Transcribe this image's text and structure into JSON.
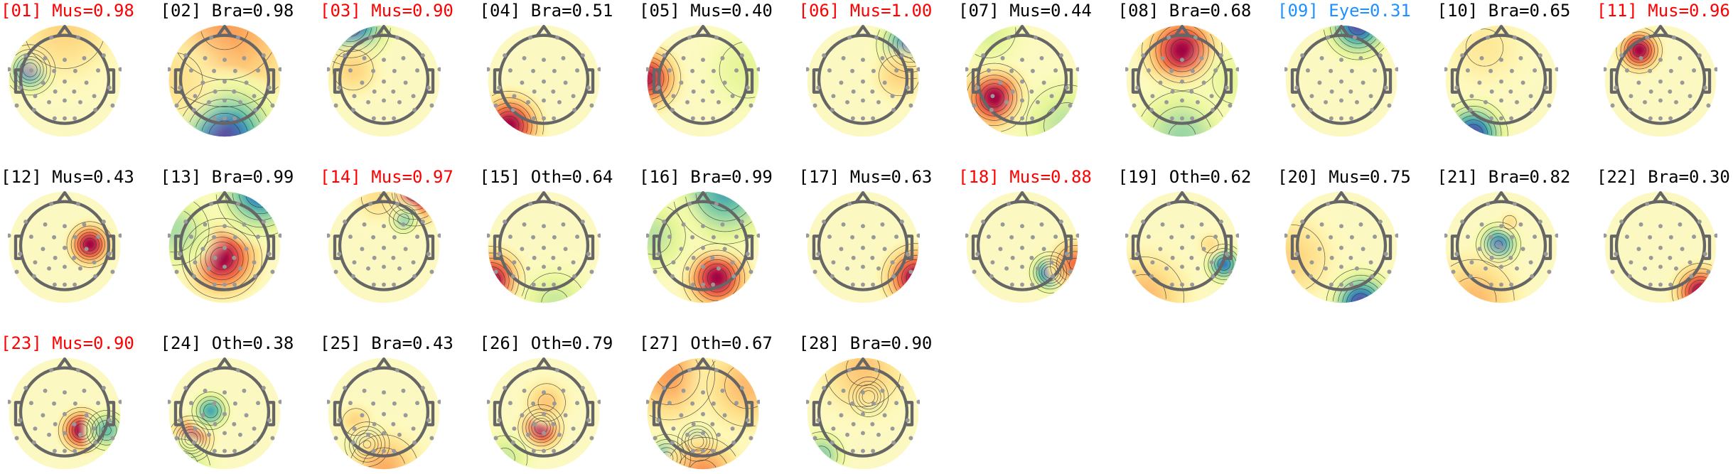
{
  "chart_data": {
    "type": "heatmap",
    "description_kind": "scalp topographic maps of independent components",
    "colormap": "Spectral_r",
    "value_range": [
      -1,
      1
    ],
    "colors": {
      "flag_red": "#ff0000",
      "flag_blue": "#1e90ff",
      "normal": "#000000",
      "head_outline": "#666666",
      "electrode": "#999999"
    },
    "panels": [
      {
        "title": "[01] Mus=0.98",
        "color": "#ff0000",
        "sources": [
          {
            "x": -0.62,
            "y": 0.2,
            "v": -1,
            "s": 0.22
          },
          {
            "x": 0,
            "y": 0.95,
            "v": 0.25,
            "s": 0.6
          }
        ]
      },
      {
        "title": "[02] Bra=0.98",
        "color": "#000000",
        "sources": [
          {
            "x": 0,
            "y": 1.0,
            "v": 0.45,
            "s": 0.9
          },
          {
            "x": 0,
            "y": -1.0,
            "v": -1,
            "s": 0.5
          },
          {
            "x": -0.9,
            "y": 0,
            "v": 0.2,
            "s": 0.5
          }
        ]
      },
      {
        "title": "[03] Mus=0.90",
        "color": "#ff0000",
        "sources": [
          {
            "x": -0.6,
            "y": 1.0,
            "v": -1,
            "s": 0.35
          },
          {
            "x": -0.55,
            "y": 0.2,
            "v": 0.25,
            "s": 0.3
          }
        ]
      },
      {
        "title": "[04] Bra=0.51",
        "color": "#000000",
        "sources": [
          {
            "x": -0.62,
            "y": -0.8,
            "v": 1,
            "s": 0.3
          }
        ]
      },
      {
        "title": "[05] Mus=0.40",
        "color": "#000000",
        "sources": [
          {
            "x": -1.0,
            "y": 0.05,
            "v": 0.9,
            "s": 0.3
          },
          {
            "x": 0.8,
            "y": 0.2,
            "v": -0.2,
            "s": 0.5
          }
        ]
      },
      {
        "title": "[06] Mus=1.00",
        "color": "#ff0000",
        "sources": [
          {
            "x": 0.85,
            "y": 0.65,
            "v": -0.95,
            "s": 0.3
          },
          {
            "x": 0.65,
            "y": 0.1,
            "v": 0.25,
            "s": 0.3
          }
        ]
      },
      {
        "title": "[07] Mus=0.44",
        "color": "#000000",
        "sources": [
          {
            "x": -0.5,
            "y": -0.3,
            "v": 1,
            "s": 0.3
          },
          {
            "x": 0.8,
            "y": -0.8,
            "v": -0.35,
            "s": 0.5
          },
          {
            "x": -0.6,
            "y": 0.9,
            "v": -0.25,
            "s": 0.4
          }
        ]
      },
      {
        "title": "[08] Bra=0.68",
        "color": "#000000",
        "sources": [
          {
            "x": 0,
            "y": 0.55,
            "v": 1,
            "s": 0.35
          },
          {
            "x": 0,
            "y": -1.0,
            "v": -0.45,
            "s": 0.5
          },
          {
            "x": 0.95,
            "y": 0,
            "v": -0.2,
            "s": 0.4
          }
        ]
      },
      {
        "title": "[09] Eye=0.31",
        "color": "#1e90ff",
        "sources": [
          {
            "x": 0.3,
            "y": 1.0,
            "v": -1,
            "s": 0.3
          }
        ]
      },
      {
        "title": "[10] Bra=0.65",
        "color": "#000000",
        "sources": [
          {
            "x": -0.5,
            "y": -0.95,
            "v": -1,
            "s": 0.3
          },
          {
            "x": -0.3,
            "y": 0.6,
            "v": 0.15,
            "s": 0.5
          }
        ]
      },
      {
        "title": "[11] Mus=0.96",
        "color": "#ff0000",
        "sources": [
          {
            "x": -0.38,
            "y": 0.55,
            "v": 1,
            "s": 0.2
          }
        ]
      },
      {
        "title": "[12] Mus=0.43",
        "color": "#000000",
        "sources": [
          {
            "x": 0.45,
            "y": 0.05,
            "v": 1,
            "s": 0.2
          }
        ]
      },
      {
        "title": "[13] Bra=0.99",
        "color": "#000000",
        "sources": [
          {
            "x": -0.05,
            "y": -0.2,
            "v": 1,
            "s": 0.35
          },
          {
            "x": 0.65,
            "y": 1.0,
            "v": -0.9,
            "s": 0.4
          },
          {
            "x": -0.9,
            "y": 0.3,
            "v": -0.4,
            "s": 0.4
          }
        ]
      },
      {
        "title": "[14] Mus=0.97",
        "color": "#ff0000",
        "sources": [
          {
            "x": 0.55,
            "y": 1.0,
            "v": 1,
            "s": 0.3
          },
          {
            "x": 0.35,
            "y": 0.5,
            "v": -0.5,
            "s": 0.15
          },
          {
            "x": -0.1,
            "y": 0.9,
            "v": 0.2,
            "s": 0.3
          }
        ]
      },
      {
        "title": "[15] Oth=0.64",
        "color": "#000000",
        "sources": [
          {
            "x": -0.95,
            "y": -0.6,
            "v": 1,
            "s": 0.3
          },
          {
            "x": 0.2,
            "y": -1.0,
            "v": -0.3,
            "s": 0.4
          }
        ]
      },
      {
        "title": "[16] Bra=0.99",
        "color": "#000000",
        "sources": [
          {
            "x": 0.25,
            "y": -0.55,
            "v": 1,
            "s": 0.3
          },
          {
            "x": 0.4,
            "y": 1.0,
            "v": -0.7,
            "s": 0.5
          },
          {
            "x": -0.9,
            "y": 0.2,
            "v": -0.35,
            "s": 0.4
          }
        ]
      },
      {
        "title": "[17] Mus=0.63",
        "color": "#000000",
        "sources": [
          {
            "x": 0.95,
            "y": -0.55,
            "v": 1,
            "s": 0.3
          }
        ]
      },
      {
        "title": "[18] Mus=0.88",
        "color": "#ff0000",
        "sources": [
          {
            "x": 0.5,
            "y": -0.45,
            "v": -1,
            "s": 0.18
          },
          {
            "x": 0.95,
            "y": -0.3,
            "v": 0.6,
            "s": 0.25
          }
        ]
      },
      {
        "title": "[19] Oth=0.62",
        "color": "#000000",
        "sources": [
          {
            "x": 0.75,
            "y": -0.3,
            "v": -0.85,
            "s": 0.18
          },
          {
            "x": -0.7,
            "y": -0.9,
            "v": 0.35,
            "s": 0.5
          },
          {
            "x": 0.5,
            "y": 0.05,
            "v": 0.2,
            "s": 0.15
          }
        ]
      },
      {
        "title": "[20] Mus=0.75",
        "color": "#000000",
        "sources": [
          {
            "x": 0.35,
            "y": -1.0,
            "v": -1,
            "s": 0.3
          },
          {
            "x": -0.9,
            "y": -0.2,
            "v": 0.25,
            "s": 0.5
          }
        ]
      },
      {
        "title": "[21] Bra=0.82",
        "color": "#000000",
        "sources": [
          {
            "x": -0.05,
            "y": 0.05,
            "v": -0.9,
            "s": 0.2
          },
          {
            "x": 0.15,
            "y": 0.45,
            "v": 0.2,
            "s": 0.12
          },
          {
            "x": -0.5,
            "y": -0.95,
            "v": 0.35,
            "s": 0.5
          }
        ]
      },
      {
        "title": "[22] Bra=0.30",
        "color": "#000000",
        "sources": [
          {
            "x": 0.72,
            "y": -0.8,
            "v": 1,
            "s": 0.25
          }
        ]
      },
      {
        "title": "[23] Mus=0.90",
        "color": "#ff0000",
        "sources": [
          {
            "x": 0.3,
            "y": -0.3,
            "v": 1,
            "s": 0.2
          },
          {
            "x": 0.75,
            "y": -0.3,
            "v": -0.6,
            "s": 0.2
          }
        ]
      },
      {
        "title": "[24] Oth=0.38",
        "color": "#000000",
        "sources": [
          {
            "x": -0.6,
            "y": -0.45,
            "v": 1,
            "s": 0.2
          },
          {
            "x": -0.25,
            "y": 0.05,
            "v": -0.7,
            "s": 0.18
          },
          {
            "x": -0.8,
            "y": -1.0,
            "v": -0.4,
            "s": 0.35
          }
        ]
      },
      {
        "title": "[25] Bra=0.43",
        "color": "#000000",
        "sources": [
          {
            "x": -0.3,
            "y": -0.55,
            "v": -0.9,
            "s": 0.2
          },
          {
            "x": -0.5,
            "y": -0.15,
            "v": 0.25,
            "s": 0.2
          },
          {
            "x": 0,
            "y": -1.0,
            "v": 0.4,
            "s": 0.4
          }
        ]
      },
      {
        "title": "[26] Oth=0.79",
        "color": "#000000",
        "sources": [
          {
            "x": -0.05,
            "y": -0.25,
            "v": 1,
            "s": 0.2
          },
          {
            "x": 0.05,
            "y": 0.2,
            "v": 0.3,
            "s": 0.25
          },
          {
            "x": -0.7,
            "y": -0.8,
            "v": -0.3,
            "s": 0.3
          }
        ]
      },
      {
        "title": "[27] Oth=0.67",
        "color": "#000000",
        "sources": [
          {
            "x": -0.1,
            "y": -0.5,
            "v": -0.85,
            "s": 0.18
          },
          {
            "x": -0.65,
            "y": -0.8,
            "v": -0.8,
            "s": 0.22
          },
          {
            "x": 0,
            "y": -1.1,
            "v": 0.5,
            "s": 0.4
          },
          {
            "x": -0.6,
            "y": 0.7,
            "v": 0.45,
            "s": 0.5
          },
          {
            "x": 0.8,
            "y": 0.5,
            "v": 0.35,
            "s": 0.5
          }
        ]
      },
      {
        "title": "[28] Bra=0.90",
        "color": "#000000",
        "sources": [
          {
            "x": 0.1,
            "y": 0.3,
            "v": -0.85,
            "s": 0.18
          },
          {
            "x": -0.75,
            "y": -0.75,
            "v": -0.5,
            "s": 0.25
          },
          {
            "x": 0,
            "y": 0.8,
            "v": 0.3,
            "s": 0.5
          }
        ]
      }
    ]
  }
}
